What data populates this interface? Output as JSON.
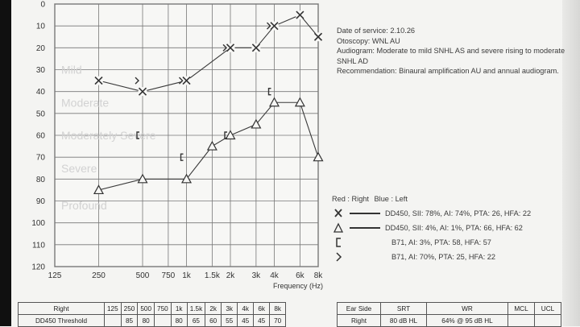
{
  "notes": {
    "date_of_service": "Date of service: 2.10.26",
    "otoscopy": "Otoscopy: WNL AU",
    "audiogram": "Audiogram: Moderate to mild SNHL AS and severe rising to moderate SNHL AD",
    "recommendation": "Recommendation: Binaural amplification AU and annual audiogram."
  },
  "legend": {
    "red_label": "Red : Right",
    "blue_label": "Blue : Left",
    "rows": [
      {
        "symbol": "x-icon",
        "text": "DD450, SII: 78%, AI: 74%, PTA: 26, HFA: 22"
      },
      {
        "symbol": "triangle-icon",
        "text": "DD450, SII: 4%, AI: 1%, PTA: 66, HFA: 62"
      },
      {
        "symbol": "bracket-icon",
        "text": "B71, AI: 3%, PTA: 58, HFA: 57"
      },
      {
        "symbol": "chevron-right-icon",
        "text": "B71, AI: 70%, PTA: 25, HFA: 22"
      }
    ]
  },
  "chart_data": {
    "type": "scatter",
    "xlabel": "Frequency (Hz)",
    "ylabel": "",
    "x_scale": "log",
    "y_inverted": true,
    "ylim": [
      0,
      120
    ],
    "xlim": [
      125,
      8000
    ],
    "x_ticks": [
      {
        "value": 125,
        "label": "125"
      },
      {
        "value": 250,
        "label": "250"
      },
      {
        "value": 500,
        "label": "500"
      },
      {
        "value": 750,
        "label": "750"
      },
      {
        "value": 1000,
        "label": "1k"
      },
      {
        "value": 1500,
        "label": "1.5k"
      },
      {
        "value": 2000,
        "label": "2k"
      },
      {
        "value": 3000,
        "label": "3k"
      },
      {
        "value": 4000,
        "label": "4k"
      },
      {
        "value": 6000,
        "label": "6k"
      },
      {
        "value": 8000,
        "label": "8k"
      }
    ],
    "y_ticks": [
      0,
      10,
      20,
      30,
      40,
      50,
      60,
      70,
      80,
      90,
      100,
      110,
      120
    ],
    "grid": true,
    "severity_bands": [
      {
        "label": "Mild",
        "level": 30
      },
      {
        "label": "Moderate",
        "level": 45
      },
      {
        "label": "Moderately Severe",
        "level": 60
      },
      {
        "label": "Severe",
        "level": 75
      },
      {
        "label": "Profound",
        "level": 92
      }
    ],
    "series": [
      {
        "symbol": "x",
        "connected": true,
        "points": [
          [
            250,
            35
          ],
          [
            500,
            40
          ],
          [
            1000,
            35
          ],
          [
            2000,
            20
          ],
          [
            3000,
            20
          ],
          [
            4000,
            10
          ],
          [
            6000,
            5
          ],
          [
            8000,
            15
          ]
        ]
      },
      {
        "symbol": "triangle",
        "connected": true,
        "points": [
          [
            250,
            85
          ],
          [
            500,
            80
          ],
          [
            1000,
            80
          ],
          [
            1500,
            65
          ],
          [
            2000,
            60
          ],
          [
            3000,
            55
          ],
          [
            4000,
            45
          ],
          [
            6000,
            45
          ],
          [
            8000,
            70
          ]
        ]
      },
      {
        "symbol": "bracket",
        "connected": false,
        "points": [
          [
            500,
            60
          ],
          [
            1000,
            70
          ],
          [
            2000,
            60
          ],
          [
            4000,
            40
          ]
        ]
      },
      {
        "symbol": "chevron",
        "connected": false,
        "points": [
          [
            500,
            35
          ],
          [
            1000,
            35
          ],
          [
            2000,
            20
          ],
          [
            4000,
            10
          ]
        ]
      }
    ]
  },
  "threshold_table": {
    "header": [
      "Right",
      "125",
      "250",
      "500",
      "750",
      "1k",
      "1.5k",
      "2k",
      "3k",
      "4k",
      "6k",
      "8k"
    ],
    "row": [
      "DD450 Threshold",
      "",
      "85",
      "80",
      "",
      "80",
      "65",
      "60",
      "55",
      "45",
      "45",
      "70"
    ]
  },
  "speech_table": {
    "header": [
      "Ear Side",
      "SRT",
      "WR",
      "MCL",
      "UCL"
    ],
    "row": [
      "Right",
      "80 dB HL",
      "64% @ 95 dB HL",
      "",
      ""
    ]
  }
}
